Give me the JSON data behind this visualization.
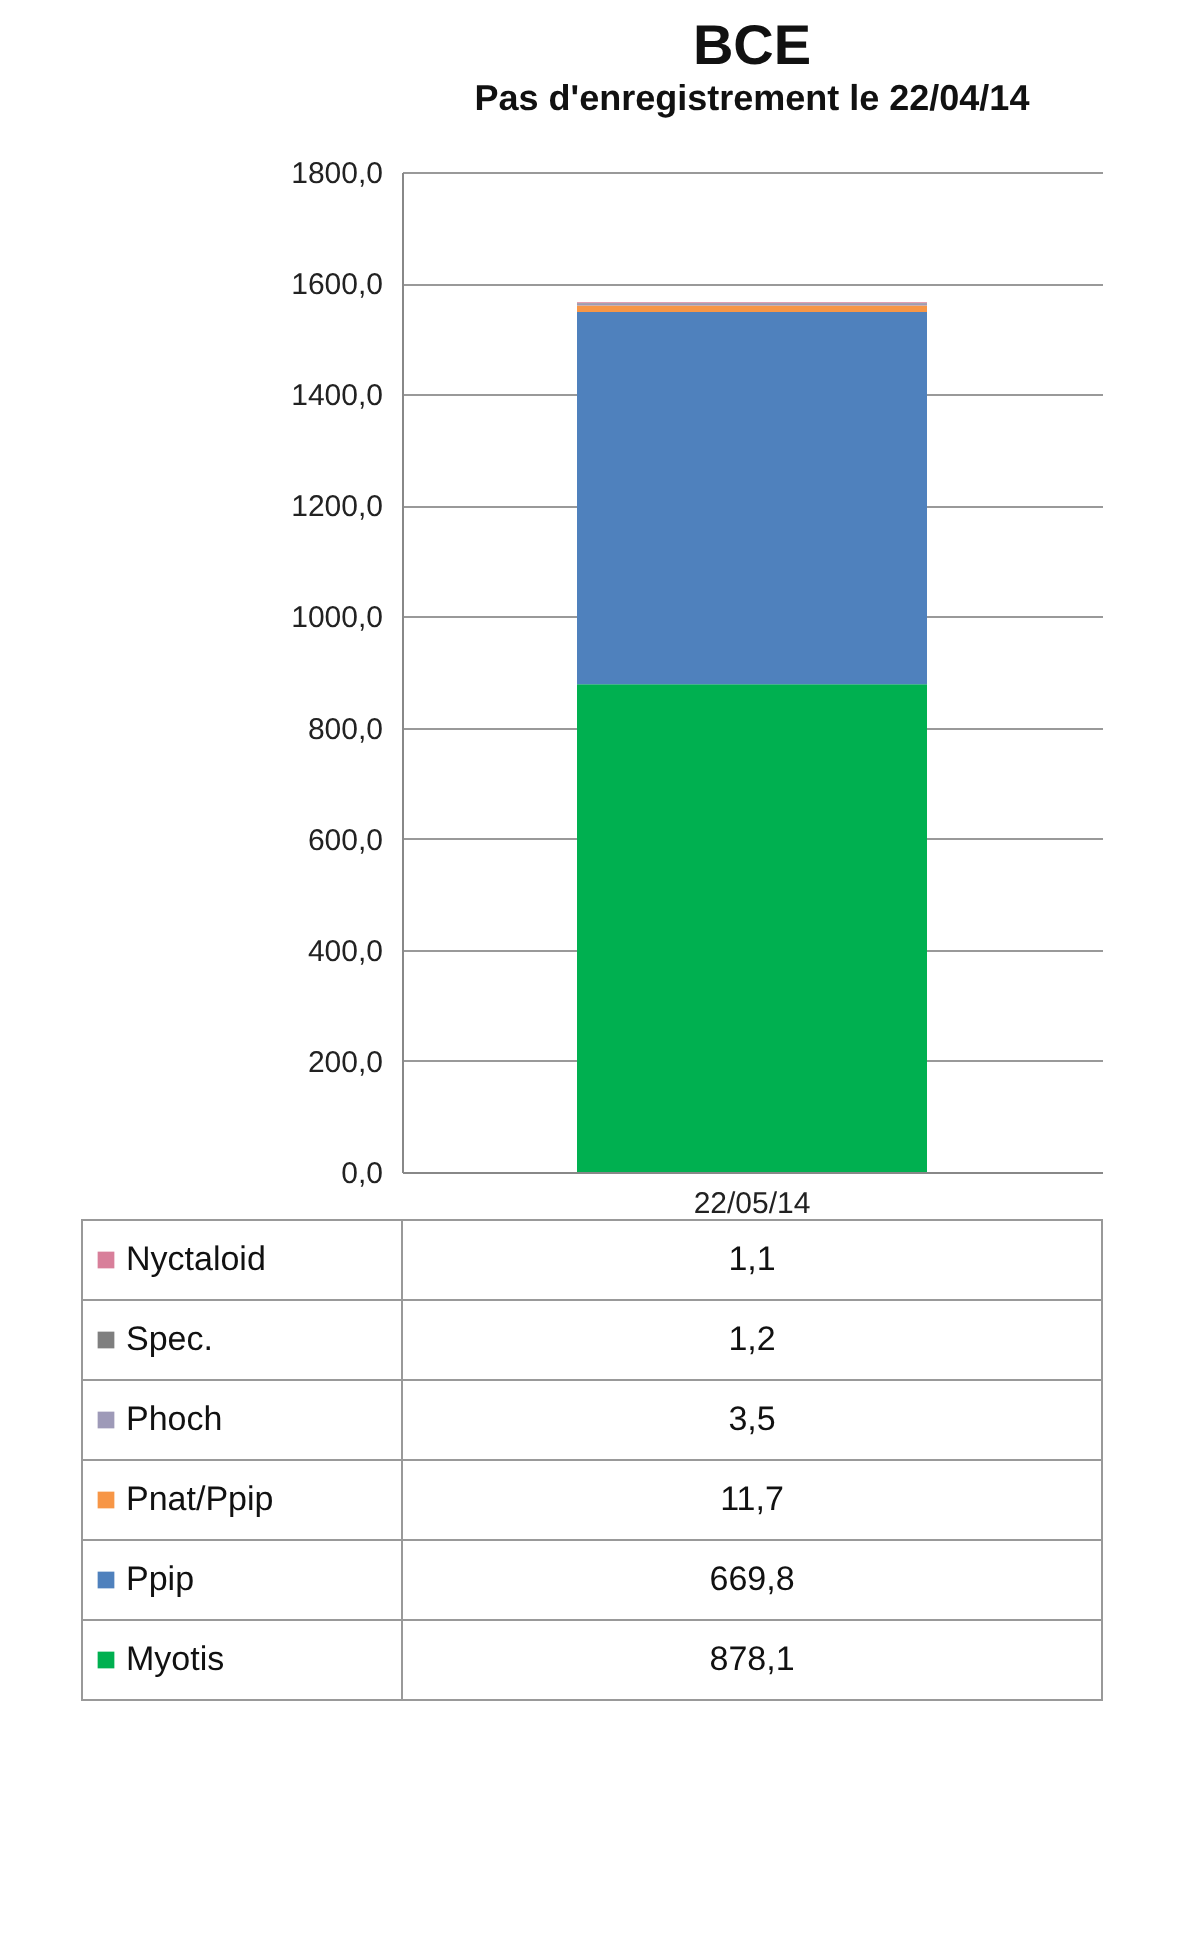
{
  "chart_data": {
    "type": "bar",
    "title": "BCE",
    "subtitle": "Pas d'enregistrement le 22/04/14",
    "categories": [
      "22/05/14"
    ],
    "stacked": true,
    "grid": "y",
    "legend": "bottom",
    "ylim": [
      0,
      1800
    ],
    "yticks": [
      {
        "value": 0,
        "label": "0,0"
      },
      {
        "value": 200,
        "label": "200,0"
      },
      {
        "value": 400,
        "label": "400,0"
      },
      {
        "value": 600,
        "label": "600,0"
      },
      {
        "value": 800,
        "label": "800,0"
      },
      {
        "value": 1000,
        "label": "1000,0"
      },
      {
        "value": 1200,
        "label": "1200,0"
      },
      {
        "value": 1400,
        "label": "1400,0"
      },
      {
        "value": 1600,
        "label": "1600,0"
      },
      {
        "value": 1800,
        "label": "1800,0"
      }
    ],
    "value_labels": [
      [
        "878,1"
      ],
      [
        "669,8"
      ],
      [
        "11,7"
      ],
      [
        "3,5"
      ],
      [
        "1,2"
      ],
      [
        "1,1"
      ]
    ],
    "series": [
      {
        "name": "Myotis",
        "color": "#00b050",
        "values": [
          878.1
        ]
      },
      {
        "name": "Ppip",
        "color": "#4f81bd",
        "values": [
          669.8
        ]
      },
      {
        "name": "Pnat/Ppip",
        "color": "#f79646",
        "values": [
          11.7
        ]
      },
      {
        "name": "Phoch",
        "color": "#9e9ab8",
        "values": [
          3.5
        ]
      },
      {
        "name": "Spec.",
        "color": "#7f7f7f",
        "values": [
          1.2
        ]
      },
      {
        "name": "Nyctaloid",
        "color": "#d87f9a",
        "values": [
          1.1
        ]
      }
    ]
  }
}
